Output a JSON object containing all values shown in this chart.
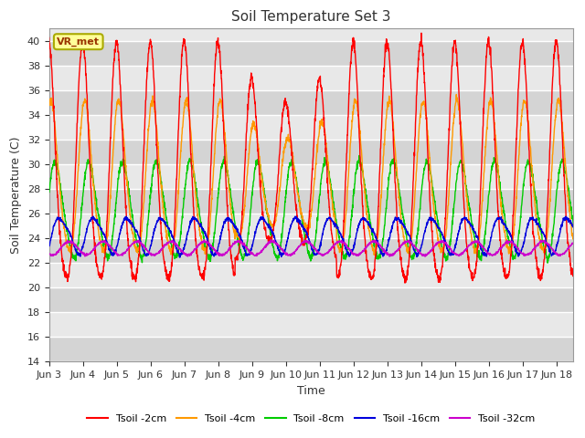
{
  "title": "Soil Temperature Set 3",
  "xlabel": "Time",
  "ylabel": "Soil Temperature (C)",
  "ylim": [
    14,
    41
  ],
  "yticks": [
    14,
    16,
    18,
    20,
    22,
    24,
    26,
    28,
    30,
    32,
    34,
    36,
    38,
    40
  ],
  "bg_light": "#e8e8e8",
  "bg_dark": "#d4d4d4",
  "annotation_text": "VR_met",
  "annotation_bg": "#ffff99",
  "annotation_border": "#aaaa00",
  "series": [
    {
      "label": "Tsoil -2cm",
      "color": "#ff0000",
      "lw": 1.0
    },
    {
      "label": "Tsoil -4cm",
      "color": "#ff9900",
      "lw": 1.0
    },
    {
      "label": "Tsoil -8cm",
      "color": "#00cc00",
      "lw": 1.0
    },
    {
      "label": "Tsoil -16cm",
      "color": "#0000dd",
      "lw": 1.0
    },
    {
      "label": "Tsoil -32cm",
      "color": "#cc00cc",
      "lw": 1.0
    }
  ],
  "x_tick_labels": [
    "Jun 3",
    "Jun 4",
    "Jun 5",
    "Jun 6",
    "Jun 7",
    "Jun 8",
    "Jun 9",
    "Jun 10",
    "Jun 11",
    "Jun 12",
    "Jun 13",
    "Jun 14",
    "Jun 15",
    "Jun 16",
    "Jun 17",
    "Jun 18"
  ],
  "figsize": [
    6.4,
    4.8
  ],
  "dpi": 100
}
